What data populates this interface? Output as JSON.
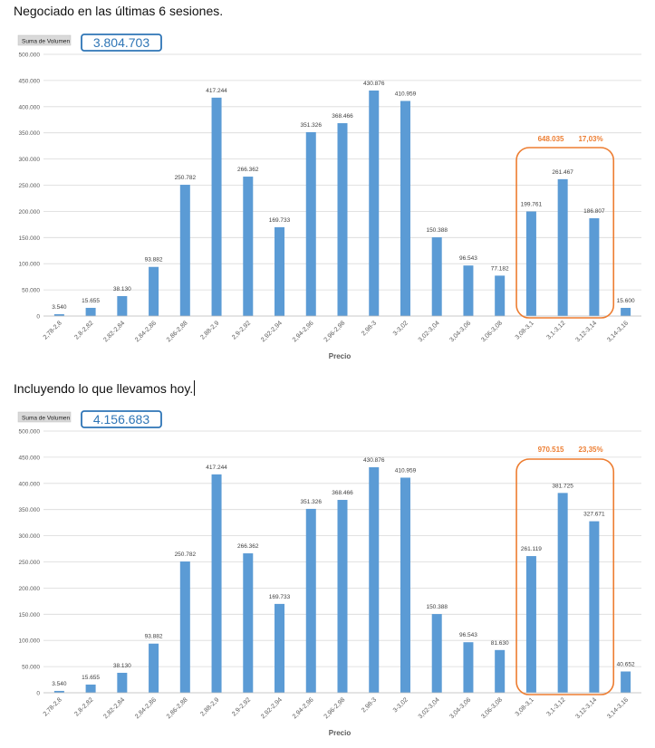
{
  "captions": {
    "chart1": "Negociado en las últimas 6 sesiones.",
    "chart2": "Incluyendo lo que llevamos hoy."
  },
  "colors": {
    "bar": "#5b9bd5",
    "highlight": "#ed7d31",
    "total_box": "#2e75b6",
    "grid": "#d9d9d9",
    "axis_text": "#595959"
  },
  "chart_data": [
    {
      "type": "bar",
      "field_button": "Suma de Volumen",
      "total": "3.804.703",
      "xlabel": "Precio",
      "ylabel": "",
      "ylim": [
        0,
        500000
      ],
      "yticks": [
        "0",
        "50.000",
        "100.000",
        "150.000",
        "200.000",
        "250.000",
        "300.000",
        "350.000",
        "400.000",
        "450.000",
        "500.000"
      ],
      "grid": true,
      "categories": [
        "2,78-2,8",
        "2,8-2,82",
        "2,82-2,84",
        "2,84-2,86",
        "2,86-2,88",
        "2,88-2,9",
        "2,9-2,92",
        "2,92-2,94",
        "2,94-2,96",
        "2,96-2,98",
        "2,98-3",
        "3-3,02",
        "3,02-3,04",
        "3,04-3,06",
        "3,06-3,08",
        "3,08-3,1",
        "3,1-3,12",
        "3,12-3,14",
        "3,14-3,16"
      ],
      "values": [
        3540,
        15655,
        38130,
        93882,
        250782,
        417244,
        266362,
        169733,
        351326,
        368466,
        430876,
        410959,
        150388,
        96543,
        77182,
        199761,
        261467,
        186807,
        15600
      ],
      "value_labels": [
        "3.540",
        "15.655",
        "38.130",
        "93.882",
        "250.782",
        "417.244",
        "266.362",
        "169.733",
        "351.326",
        "368.466",
        "430.876",
        "410.959",
        "150.388",
        "96.543",
        "77.182",
        "199.761",
        "261.467",
        "186.807",
        "15.600"
      ],
      "highlight": {
        "from": 15,
        "to": 17,
        "sum": "648.035",
        "percent": "17,03%"
      }
    },
    {
      "type": "bar",
      "field_button": "Suma de Volumen",
      "total": "4.156.683",
      "xlabel": "Precio",
      "ylabel": "",
      "ylim": [
        0,
        500000
      ],
      "yticks": [
        "0",
        "50.000",
        "100.000",
        "150.000",
        "200.000",
        "250.000",
        "300.000",
        "350.000",
        "400.000",
        "450.000",
        "500.000"
      ],
      "grid": true,
      "categories": [
        "2,78-2,8",
        "2,8-2,82",
        "2,82-2,84",
        "2,84-2,86",
        "2,86-2,88",
        "2,88-2,9",
        "2,9-2,92",
        "2,92-2,94",
        "2,94-2,96",
        "2,96-2,98",
        "2,98-3",
        "3-3,02",
        "3,02-3,04",
        "3,04-3,06",
        "3,06-3,08",
        "3,08-3,1",
        "3,1-3,12",
        "3,12-3,14",
        "3,14-3,16"
      ],
      "values": [
        3540,
        15655,
        38130,
        93882,
        250782,
        417244,
        266362,
        169733,
        351326,
        368466,
        430876,
        410959,
        150388,
        96543,
        81630,
        261119,
        381725,
        327671,
        40652
      ],
      "value_labels": [
        "3.540",
        "15.655",
        "38.130",
        "93.882",
        "250.782",
        "417.244",
        "266.362",
        "169.733",
        "351.326",
        "368.466",
        "430.876",
        "410.959",
        "150.388",
        "96.543",
        "81.630",
        "261.119",
        "381.725",
        "327.671",
        "40.652"
      ],
      "highlight": {
        "from": 15,
        "to": 17,
        "sum": "970.515",
        "percent": "23,35%"
      }
    }
  ]
}
